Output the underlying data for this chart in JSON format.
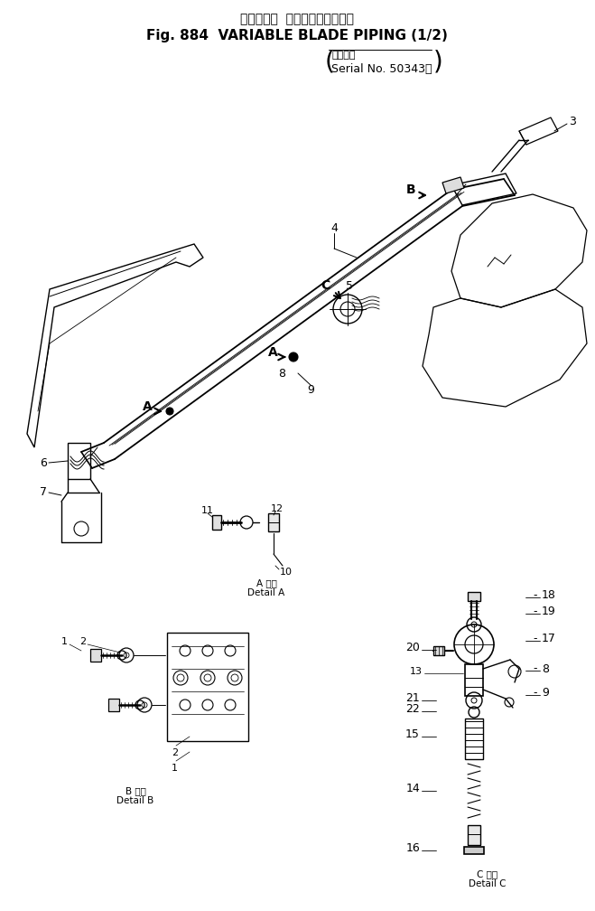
{
  "title_jp": "バリアブル  ブレードパイピング",
  "title_en": "Fig. 884  VARIABLE BLADE PIPING (1/2)",
  "serial_jp": "適用号機",
  "serial_en": "Serial No. 50343～",
  "detail_a_jp": "A 詳細",
  "detail_a_en": "Detail A",
  "detail_b_jp": "B 詳細",
  "detail_b_en": "Detail B",
  "detail_c_jp": "C 詳細",
  "detail_c_en": "Detail C",
  "bg_color": "#ffffff",
  "line_color": "#000000",
  "fig_w": 6.59,
  "fig_h": 10.08,
  "dpi": 100
}
